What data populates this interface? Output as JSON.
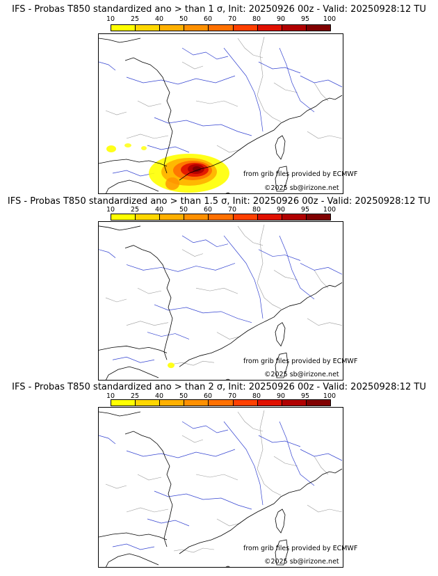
{
  "panels": [
    {
      "title": "IFS - Probas T850  standardized ano > than 1 σ, Init: 20250926 00z - Valid: 20250928:12 TU",
      "threshold_sigma": 1
    },
    {
      "title": "IFS - Probas T850  standardized ano > than 1.5 σ, Init: 20250926 00z - Valid: 20250928:12 TU",
      "threshold_sigma": 1.5
    },
    {
      "title": "IFS - Probas T850  standardized ano > than 2 σ, Init: 20250926 00z - Valid: 20250928:12 TU",
      "threshold_sigma": 2
    }
  ],
  "colorbar": {
    "ticks": [
      "10",
      "25",
      "40",
      "50",
      "60",
      "70",
      "80",
      "90",
      "95",
      "100"
    ],
    "colors": [
      "#ffff00",
      "#ffd700",
      "#ffb000",
      "#ff9000",
      "#ff7000",
      "#ff4000",
      "#e01000",
      "#b00000",
      "#800000"
    ]
  },
  "credits": {
    "source": "from grib files provided by ECMWF",
    "copyright": "©2025 sb@irizone.net"
  }
}
